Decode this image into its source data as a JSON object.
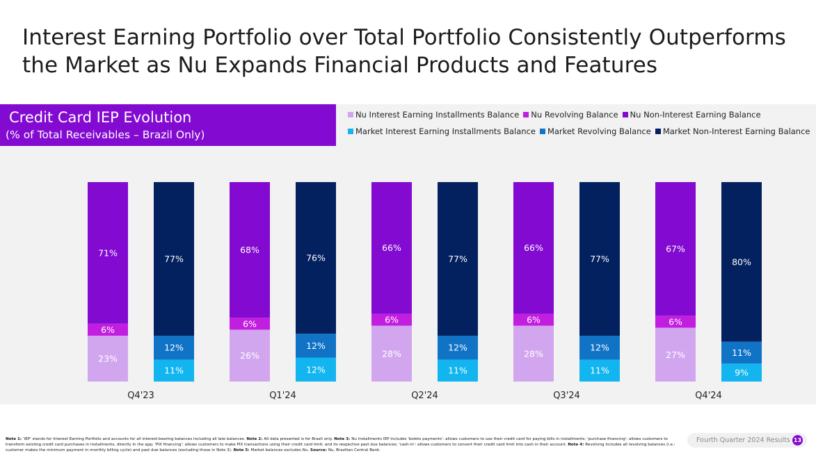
{
  "title_lines": [
    "Interest Earning Portfolio over Total Portfolio Consistently Outperforms",
    "the Market as Nu Expands Financial Products and Features"
  ],
  "badge": {
    "title": "Credit Card IEP Evolution",
    "subtitle": "(% of Total Receivables – Brazil Only)"
  },
  "chart_data": {
    "type": "bar",
    "stacked": true,
    "unit": "%",
    "categories": [
      "Q4'23",
      "Q1'24",
      "Q2'24",
      "Q3'24",
      "Q4'24"
    ],
    "groups": [
      {
        "bar": "Nu",
        "series": [
          {
            "name": "Nu Interest Earning Installments Balance",
            "color": "#d2a6ef",
            "values": [
              23,
              26,
              28,
              28,
              27
            ]
          },
          {
            "name": "Nu Revolving Balance",
            "color": "#c21ee0",
            "values": [
              6,
              6,
              6,
              6,
              6
            ]
          },
          {
            "name": "Nu Non-Interest Earning Balance",
            "color": "#820ad1",
            "values": [
              71,
              68,
              66,
              66,
              67
            ]
          }
        ]
      },
      {
        "bar": "Market",
        "series": [
          {
            "name": "Market Interest Earning Installments Balance",
            "color": "#12b5ef",
            "values": [
              11,
              12,
              11,
              11,
              9
            ]
          },
          {
            "name": "Market Revolving Balance",
            "color": "#1173c6",
            "values": [
              12,
              12,
              12,
              12,
              11
            ]
          },
          {
            "name": "Market Non-Interest Earning Balance",
            "color": "#03205f",
            "values": [
              77,
              76,
              77,
              77,
              80
            ]
          }
        ]
      }
    ],
    "legend": {
      "rows": [
        [
          "Nu Interest Earning Installments Balance",
          "Nu Revolving Balance",
          "Nu Non-Interest Earning Balance"
        ],
        [
          "Market Interest Earning Installments Balance",
          "Market Revolving Balance",
          "Market Non-Interest Earning Balance"
        ]
      ],
      "placement": "top"
    },
    "ylim": [
      0,
      100
    ],
    "grid": false
  },
  "footnote_parts": [
    {
      "bold": "Note 1: ",
      "text": "'IEP' stands for Interest Earning Portfolio and accounts for all interest-bearing balances including all late balances. "
    },
    {
      "bold": "Note 2: ",
      "text": "All data presented is for Brazil only. "
    },
    {
      "bold": "Note 3: ",
      "text": "Nu Installments IEP includes 'boleto payments': allows customers to use their credit card for paying bills in installments; 'purchase financing': allows customers to transform existing credit card purchases in installments, directly in the app; 'PIX financing': allows customers to make PIX transactions using their credit card limit; and its respective past due balances; 'cash-in': allows customers to convert their credit card limit into cash in their account. "
    },
    {
      "bold": "Note 4: ",
      "text": "Revolving includes all revolving balances (i.e.: customer makes the minimum payment in monthly billing cycle) and past due balances (excluding those in Note 3). "
    },
    {
      "bold": "Note 5: ",
      "text": "Market balances excludes Nu. "
    },
    {
      "bold": "Source: ",
      "text": "Nu, Brazilian Central Bank."
    }
  ],
  "footer": {
    "label": "Fourth Quarter 2024 Results",
    "page": "13"
  }
}
